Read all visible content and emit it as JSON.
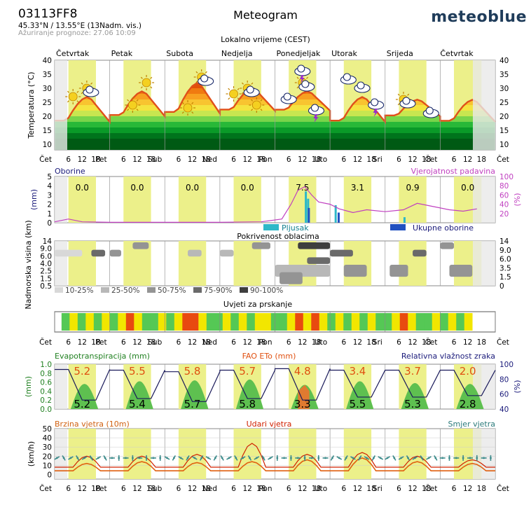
{
  "header": {
    "station": "03113FF8",
    "coords": "45.33°N / 13.55°E (13Nadm. vis.)",
    "updated": "Ažuriranje prognoze: 27.06 10:09",
    "title": "Meteogram",
    "brand": "meteoblue",
    "subtitle": "Lokalno vrijeme (CEST)"
  },
  "colors": {
    "day_band": "#ecf08a",
    "temperature_line": "#e0501a",
    "precipitation_bar": "#2eb8c8",
    "total_precip_bar": "#2050c0",
    "probability_line": "#c040c0",
    "humidity_line": "#1a1a5a",
    "evapo_fill": "#5ec050",
    "fao_fill": "#e07a30",
    "wind_speed_line": "#e06010",
    "gust_line": "#d02000",
    "direction_marks": "#3a8a8a",
    "spray_good": "#55c855",
    "spray_moderate": "#f2e600",
    "spray_bad": "#e84a10"
  },
  "chart_data": [
    {
      "type": "area",
      "panel": "temperature",
      "ylabel": "Temperatura (°C)",
      "days": [
        "Četvrtak",
        "Petak",
        "Subota",
        "Nedjelja",
        "Ponedjeljak",
        "Utorak",
        "Srijeda",
        "Četvrtak"
      ],
      "day_short": [
        "Čet",
        "Pet",
        "Sub",
        "Ned",
        "Pon",
        "Uto",
        "Sri",
        "Čet"
      ],
      "hour_ticks": [
        "6",
        "12",
        "18"
      ],
      "ylim": [
        8,
        40
      ],
      "yticks": [
        10,
        15,
        20,
        25,
        30,
        35,
        40
      ],
      "daily_min": [
        18,
        20,
        21,
        22,
        22,
        18,
        20,
        18
      ],
      "daily_max": [
        27,
        29,
        32,
        30,
        29,
        27,
        26,
        26
      ],
      "weather_icons": [
        "sun",
        "sun-cloud",
        "sun",
        "sun",
        "sun",
        "sun-cloud",
        "sun",
        "sun-cloud",
        "sun",
        "cloud",
        "sun-cloud",
        "storm",
        "storm",
        "cloud",
        "cloud",
        "storm",
        "sun-cloud",
        "cloud"
      ]
    },
    {
      "type": "bar",
      "panel": "precipitation",
      "left_title": "Oborine",
      "right_title": "Vjerojatnost padavina",
      "ylabel_left": "(mm)",
      "ylabel_right": "(%)",
      "ylim_left": [
        0,
        5
      ],
      "yticks_left": [
        0,
        1,
        2,
        3,
        4,
        5
      ],
      "ylim_right": [
        0,
        100
      ],
      "yticks_right": [
        20,
        40,
        60,
        80,
        100
      ],
      "daily_totals": [
        "0.0",
        "0.0",
        "0.0",
        "0.0",
        "7.5",
        "3.1",
        "0.9",
        "0.0"
      ],
      "showers_label": "Pljusak",
      "total_label": "Ukupne oborine",
      "showers_mm": [
        {
          "day": 4,
          "hour": 13,
          "value": 3.4
        },
        {
          "day": 4,
          "hour": 14,
          "value": 2.6
        },
        {
          "day": 5,
          "hour": 2,
          "value": 1.9
        },
        {
          "day": 6,
          "hour": 8,
          "value": 0.6
        }
      ],
      "total_mm": [
        {
          "day": 4,
          "hour": 14,
          "value": 1.6
        },
        {
          "day": 5,
          "hour": 3,
          "value": 1.1
        }
      ],
      "probability": [
        {
          "day": 0,
          "hour": 0,
          "value": 2
        },
        {
          "day": 0,
          "hour": 6,
          "value": 8
        },
        {
          "day": 0,
          "hour": 12,
          "value": 2
        },
        {
          "day": 1,
          "hour": 0,
          "value": 1
        },
        {
          "day": 2,
          "hour": 0,
          "value": 1
        },
        {
          "day": 3,
          "hour": 0,
          "value": 1
        },
        {
          "day": 3,
          "hour": 18,
          "value": 2
        },
        {
          "day": 4,
          "hour": 3,
          "value": 8
        },
        {
          "day": 4,
          "hour": 7,
          "value": 40
        },
        {
          "day": 4,
          "hour": 10,
          "value": 70
        },
        {
          "day": 4,
          "hour": 13,
          "value": 78
        },
        {
          "day": 4,
          "hour": 16,
          "value": 60
        },
        {
          "day": 4,
          "hour": 19,
          "value": 45
        },
        {
          "day": 5,
          "hour": 0,
          "value": 40
        },
        {
          "day": 5,
          "hour": 4,
          "value": 30
        },
        {
          "day": 5,
          "hour": 10,
          "value": 22
        },
        {
          "day": 5,
          "hour": 16,
          "value": 28
        },
        {
          "day": 6,
          "hour": 0,
          "value": 24
        },
        {
          "day": 6,
          "hour": 8,
          "value": 28
        },
        {
          "day": 6,
          "hour": 14,
          "value": 42
        },
        {
          "day": 6,
          "hour": 20,
          "value": 36
        },
        {
          "day": 7,
          "hour": 4,
          "value": 28
        },
        {
          "day": 7,
          "hour": 10,
          "value": 25
        },
        {
          "day": 7,
          "hour": 16,
          "value": 30
        }
      ]
    },
    {
      "type": "heatmap",
      "panel": "cloud_cover",
      "title": "Pokrivenost oblacima",
      "ylabel": "Nadmorska visina (km)",
      "yticks_left": [
        "14",
        "9.0",
        "6.0",
        "4.0",
        "2.5",
        "1.5",
        "0.5"
      ],
      "yticks_right": [
        "14",
        "9.0",
        "6.0",
        "3.5",
        "1.5",
        "0"
      ],
      "legend": [
        "10-25%",
        "25-50%",
        "50-75%",
        "75-90%",
        "90-100%"
      ],
      "legend_colors": [
        "#d8d8d8",
        "#b8b8b8",
        "#949494",
        "#6a6a6a",
        "#3e3e3e"
      ],
      "patches": [
        {
          "day": 0,
          "hour": 0,
          "hours": 12,
          "level": 0,
          "band": 1
        },
        {
          "day": 0,
          "hour": 16,
          "hours": 6,
          "level": 3,
          "band": 1
        },
        {
          "day": 1,
          "hour": 0,
          "hours": 5,
          "level": 2,
          "band": 1
        },
        {
          "day": 1,
          "hour": 10,
          "hours": 7,
          "level": 2,
          "band": 0
        },
        {
          "day": 2,
          "hour": 10,
          "hours": 6,
          "level": 1,
          "band": 1
        },
        {
          "day": 3,
          "hour": 0,
          "hours": 6,
          "level": 1,
          "band": 1
        },
        {
          "day": 3,
          "hour": 14,
          "hours": 8,
          "level": 2,
          "band": 0
        },
        {
          "day": 4,
          "hour": 0,
          "hours": 24,
          "level": 1,
          "band": 3
        },
        {
          "day": 4,
          "hour": 2,
          "hours": 10,
          "level": 2,
          "band": 4
        },
        {
          "day": 4,
          "hour": 10,
          "hours": 14,
          "level": 4,
          "band": 0
        },
        {
          "day": 4,
          "hour": 14,
          "hours": 10,
          "level": 3,
          "band": 2
        },
        {
          "day": 5,
          "hour": 0,
          "hours": 10,
          "level": 3,
          "band": 1
        },
        {
          "day": 5,
          "hour": 6,
          "hours": 10,
          "level": 2,
          "band": 3
        },
        {
          "day": 6,
          "hour": 2,
          "hours": 8,
          "level": 2,
          "band": 3
        },
        {
          "day": 6,
          "hour": 12,
          "hours": 6,
          "level": 3,
          "band": 1
        },
        {
          "day": 7,
          "hour": 0,
          "hours": 6,
          "level": 2,
          "band": 0
        },
        {
          "day": 7,
          "hour": 4,
          "hours": 10,
          "level": 2,
          "band": 3
        }
      ]
    },
    {
      "type": "heatmap",
      "panel": "spray_conditions",
      "title": "Uvjeti za prskanje",
      "blocks": [
        "g",
        "y",
        "g",
        "y",
        "g",
        "y",
        "g",
        "y",
        "r",
        "y",
        "g",
        "g",
        "y",
        "g",
        "y",
        "r",
        "r",
        "y",
        "g",
        "g",
        "y",
        "g",
        "y",
        "g",
        "y",
        "y",
        "g",
        "g",
        "y",
        "r",
        "y",
        "r",
        "y",
        "g",
        "y",
        "g",
        "y",
        "g",
        "y",
        "g",
        "g",
        "y",
        "r",
        "y",
        "g",
        "g",
        "y",
        "g",
        "y",
        "g",
        "y"
      ]
    },
    {
      "type": "area",
      "panel": "evapotranspiration",
      "left_title": "Evapotranspiracija (mm)",
      "center_title": "FAO ETo (mm)",
      "right_title": "Relativna vlažnost zraka",
      "ylabel_left": "(mm)",
      "ylabel_right": "(%)",
      "ylim_left": [
        0,
        1.0
      ],
      "yticks_left": [
        "0.0",
        "0.2",
        "0.4",
        "0.6",
        "0.8",
        "1.0"
      ],
      "ylim_right": [
        40,
        100
      ],
      "yticks_right": [
        40,
        60,
        80,
        100
      ],
      "eto_totals": [
        "5.2",
        "5.5",
        "5.8",
        "5.7",
        "4.8",
        "3.4",
        "3.7",
        "2.0"
      ],
      "evapo_totals": [
        "5.2",
        "5.4",
        "5.7",
        "5.8",
        "3.3",
        "5.5",
        "5.3",
        "2.8"
      ],
      "peak_evapo": [
        0.56,
        0.62,
        0.64,
        0.66,
        0.54,
        0.62,
        0.58,
        0.56
      ],
      "humidity_min": [
        52,
        54,
        50,
        54,
        52,
        56,
        56,
        58
      ],
      "humidity_max": [
        93,
        92,
        90,
        92,
        94,
        92,
        92,
        92
      ]
    },
    {
      "type": "line",
      "panel": "wind",
      "left_title": "Brzina vjetra (10m)",
      "center_title": "Udari vjetra",
      "right_title": "Smjer vjetra",
      "ylabel": "(km/h)",
      "ylim": [
        -5,
        50
      ],
      "yticks": [
        0,
        10,
        20,
        30,
        40,
        50
      ],
      "day_speed_max": [
        12,
        14,
        13,
        14,
        16,
        18,
        14,
        12
      ],
      "day_gust_max": [
        20,
        20,
        22,
        34,
        22,
        24,
        20,
        16
      ]
    }
  ]
}
